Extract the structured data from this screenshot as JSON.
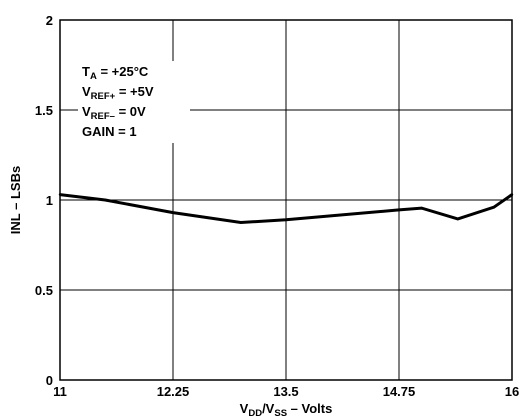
{
  "chart_data": {
    "type": "line",
    "x": [
      11,
      11.5,
      12.25,
      13,
      13.5,
      14.75,
      15,
      15.4,
      15.8,
      16
    ],
    "series": [
      {
        "values": [
          1.03,
          1.0,
          0.93,
          0.875,
          0.89,
          0.945,
          0.955,
          0.895,
          0.96,
          1.03
        ]
      }
    ],
    "xlim": [
      11,
      16
    ],
    "ylim": [
      0,
      2
    ],
    "xticks": [
      "11",
      "12.25",
      "13.5",
      "14.75",
      "16"
    ],
    "yticks": [
      "0",
      "0.5",
      "1",
      "1.5",
      "2"
    ],
    "ylabel": "INL – LSBs",
    "xlabel": {
      "v1": "V",
      "s1": "DD",
      "mid": "/V",
      "s2": "SS",
      "tail": " – Volts"
    },
    "grid": true,
    "annotations": [
      {
        "main": "T",
        "sub": "A",
        "rest": " = +25°C"
      },
      {
        "main": "V",
        "sub": "REF+",
        "rest": " = +5V"
      },
      {
        "main": "V",
        "sub": "REF–",
        "rest": " = 0V"
      },
      {
        "main": "GAIN = 1",
        "sub": "",
        "rest": ""
      }
    ],
    "colors": {
      "line": "#000000",
      "grid": "#000000",
      "background": "#ffffff"
    }
  }
}
